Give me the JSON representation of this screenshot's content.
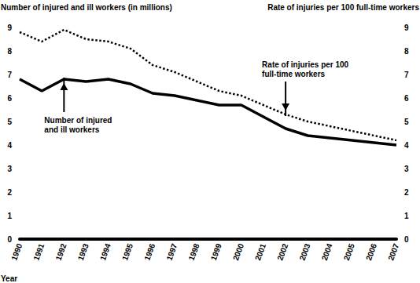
{
  "chart_data": {
    "type": "line",
    "categories": [
      "1990",
      "1991",
      "1992",
      "1993",
      "1994",
      "1995",
      "1996",
      "1997",
      "1998",
      "1999",
      "2000",
      "2001",
      "2002",
      "2003",
      "2004",
      "2005",
      "2006",
      "2007"
    ],
    "series": [
      {
        "name": "Number of injured and ill workers",
        "color": "#000000",
        "line_style": "solid",
        "axis": "y",
        "values": [
          6.8,
          6.3,
          6.8,
          6.7,
          6.8,
          6.6,
          6.2,
          6.1,
          5.9,
          5.7,
          5.7,
          5.2,
          4.7,
          4.4,
          4.3,
          4.2,
          4.1,
          4.0
        ]
      },
      {
        "name": "Rate of injuries per 100 full-time workers",
        "color": "#000000",
        "line_style": "dotted",
        "axis": "y2",
        "values": [
          8.8,
          8.4,
          8.9,
          8.5,
          8.4,
          8.1,
          7.4,
          7.1,
          6.7,
          6.3,
          6.1,
          5.7,
          5.3,
          5.0,
          4.8,
          4.6,
          4.4,
          4.2
        ]
      }
    ],
    "xlabel": "Year",
    "ylabel": "Number of injured and ill workers (in millions)",
    "y2label": "Rate of injuries per 100 full-time workers",
    "ylim": [
      0,
      9
    ],
    "yticks": [
      0,
      1,
      2,
      3,
      4,
      5,
      6,
      7,
      8,
      9
    ],
    "y2lim": [
      0,
      9
    ],
    "y2ticks": [
      0,
      1,
      2,
      3,
      4,
      5,
      6,
      7,
      8,
      9
    ],
    "grid": false,
    "annotations": [
      {
        "text": "Number of injured\nand ill workers",
        "x": "1992",
        "series": "Number of injured and ill workers"
      },
      {
        "text": "Rate of injuries per 100\nfull-time workers",
        "x": "2002",
        "series": "Rate of injuries per 100 full-time workers"
      }
    ]
  }
}
